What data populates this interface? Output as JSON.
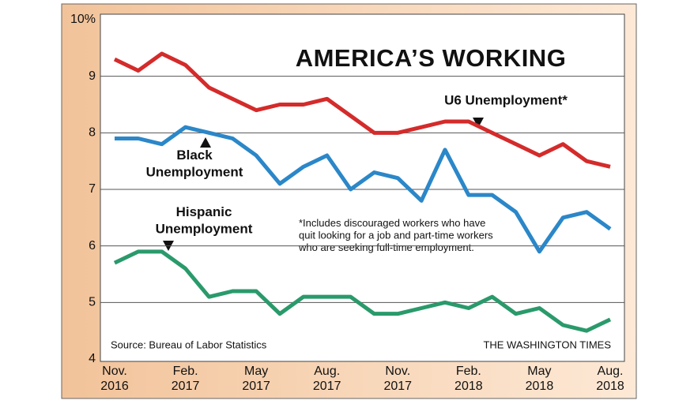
{
  "chart_data": {
    "type": "line",
    "title": "AMERICA’S WORKING",
    "categories": [
      "Nov.\n2016",
      null,
      null,
      "Feb.\n2017",
      null,
      null,
      "May\n2017",
      null,
      null,
      "Aug.\n2017",
      null,
      null,
      "Nov.\n2017",
      null,
      null,
      "Feb.\n2018",
      null,
      null,
      "May\n2018",
      null,
      null,
      "Aug.\n2018"
    ],
    "series": [
      {
        "name": "U6 Unemployment*",
        "color": "#d42b2b",
        "values": [
          9.3,
          9.1,
          9.4,
          9.2,
          8.8,
          8.6,
          8.4,
          8.5,
          8.5,
          8.6,
          8.3,
          8.0,
          8.0,
          8.1,
          8.2,
          8.2,
          8.0,
          7.8,
          7.6,
          7.8,
          7.5,
          7.4
        ]
      },
      {
        "name": "Black\nUnemployment",
        "color": "#2b87c8",
        "values": [
          7.9,
          7.9,
          7.8,
          8.1,
          8.0,
          7.9,
          7.6,
          7.1,
          7.4,
          7.6,
          7.0,
          7.3,
          7.2,
          6.8,
          7.7,
          6.9,
          6.9,
          6.6,
          5.9,
          6.5,
          6.6,
          6.3
        ]
      },
      {
        "name": "Hispanic\nUnemployment",
        "color": "#2a9a6b",
        "values": [
          5.7,
          5.9,
          5.9,
          5.6,
          5.1,
          5.2,
          5.2,
          4.8,
          5.1,
          5.1,
          5.1,
          4.8,
          4.8,
          4.9,
          5.0,
          4.9,
          5.1,
          4.8,
          4.9,
          4.6,
          4.5,
          4.7
        ]
      }
    ],
    "ylim": [
      4,
      10
    ],
    "yticks": [
      4,
      5,
      6,
      7,
      8,
      9,
      {
        "value": 10,
        "label": "10%"
      }
    ],
    "grid": true,
    "note": "*Includes discouraged workers who have\nquit looking for a job and part-time workers\nwho are seeking full-time employment.",
    "source": "Source: Bureau of Labor Statistics",
    "credit": "THE WASHINGTON TIMES"
  }
}
